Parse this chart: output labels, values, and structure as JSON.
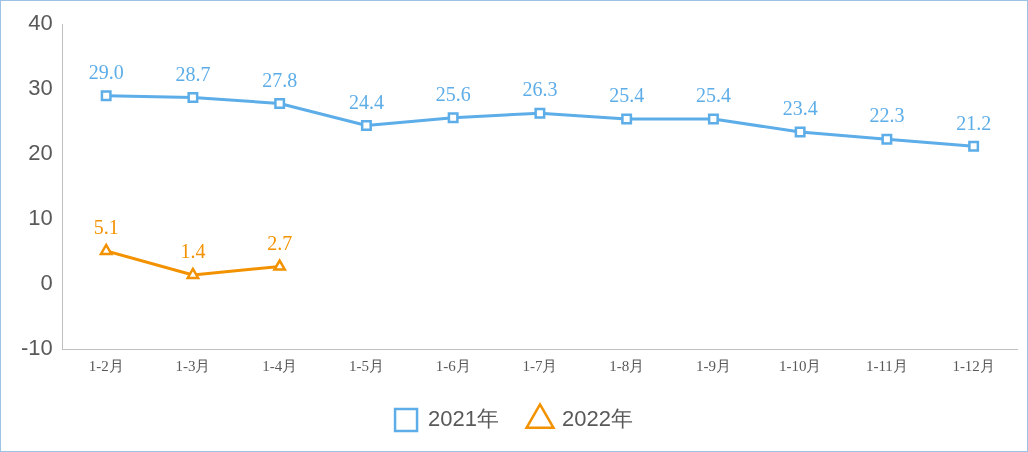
{
  "chart_data": {
    "type": "line",
    "categories": [
      "1-2月",
      "1-3月",
      "1-4月",
      "1-5月",
      "1-6月",
      "1-7月",
      "1-8月",
      "1-9月",
      "1-10月",
      "1-11月",
      "1-12月"
    ],
    "series": [
      {
        "name": "2021年",
        "color": "#5dade8",
        "marker": "square",
        "values": [
          29.0,
          28.7,
          27.8,
          24.4,
          25.6,
          26.3,
          25.4,
          25.4,
          23.4,
          22.3,
          21.2
        ],
        "value_labels": [
          "29.0",
          "28.7",
          "27.8",
          "24.4",
          "25.6",
          "26.3",
          "25.4",
          "25.4",
          "23.4",
          "22.3",
          "21.2"
        ]
      },
      {
        "name": "2022年",
        "color": "#f39200",
        "marker": "triangle",
        "values": [
          5.1,
          1.4,
          2.7,
          null,
          null,
          null,
          null,
          null,
          null,
          null,
          null
        ],
        "value_labels": [
          "5.1",
          "1.4",
          "2.7",
          null,
          null,
          null,
          null,
          null,
          null,
          null,
          null
        ]
      }
    ],
    "ylim": [
      -10,
      40
    ],
    "yticks": [
      -10,
      0,
      10,
      20,
      30,
      40
    ],
    "grid": false,
    "legend": "bottom"
  }
}
